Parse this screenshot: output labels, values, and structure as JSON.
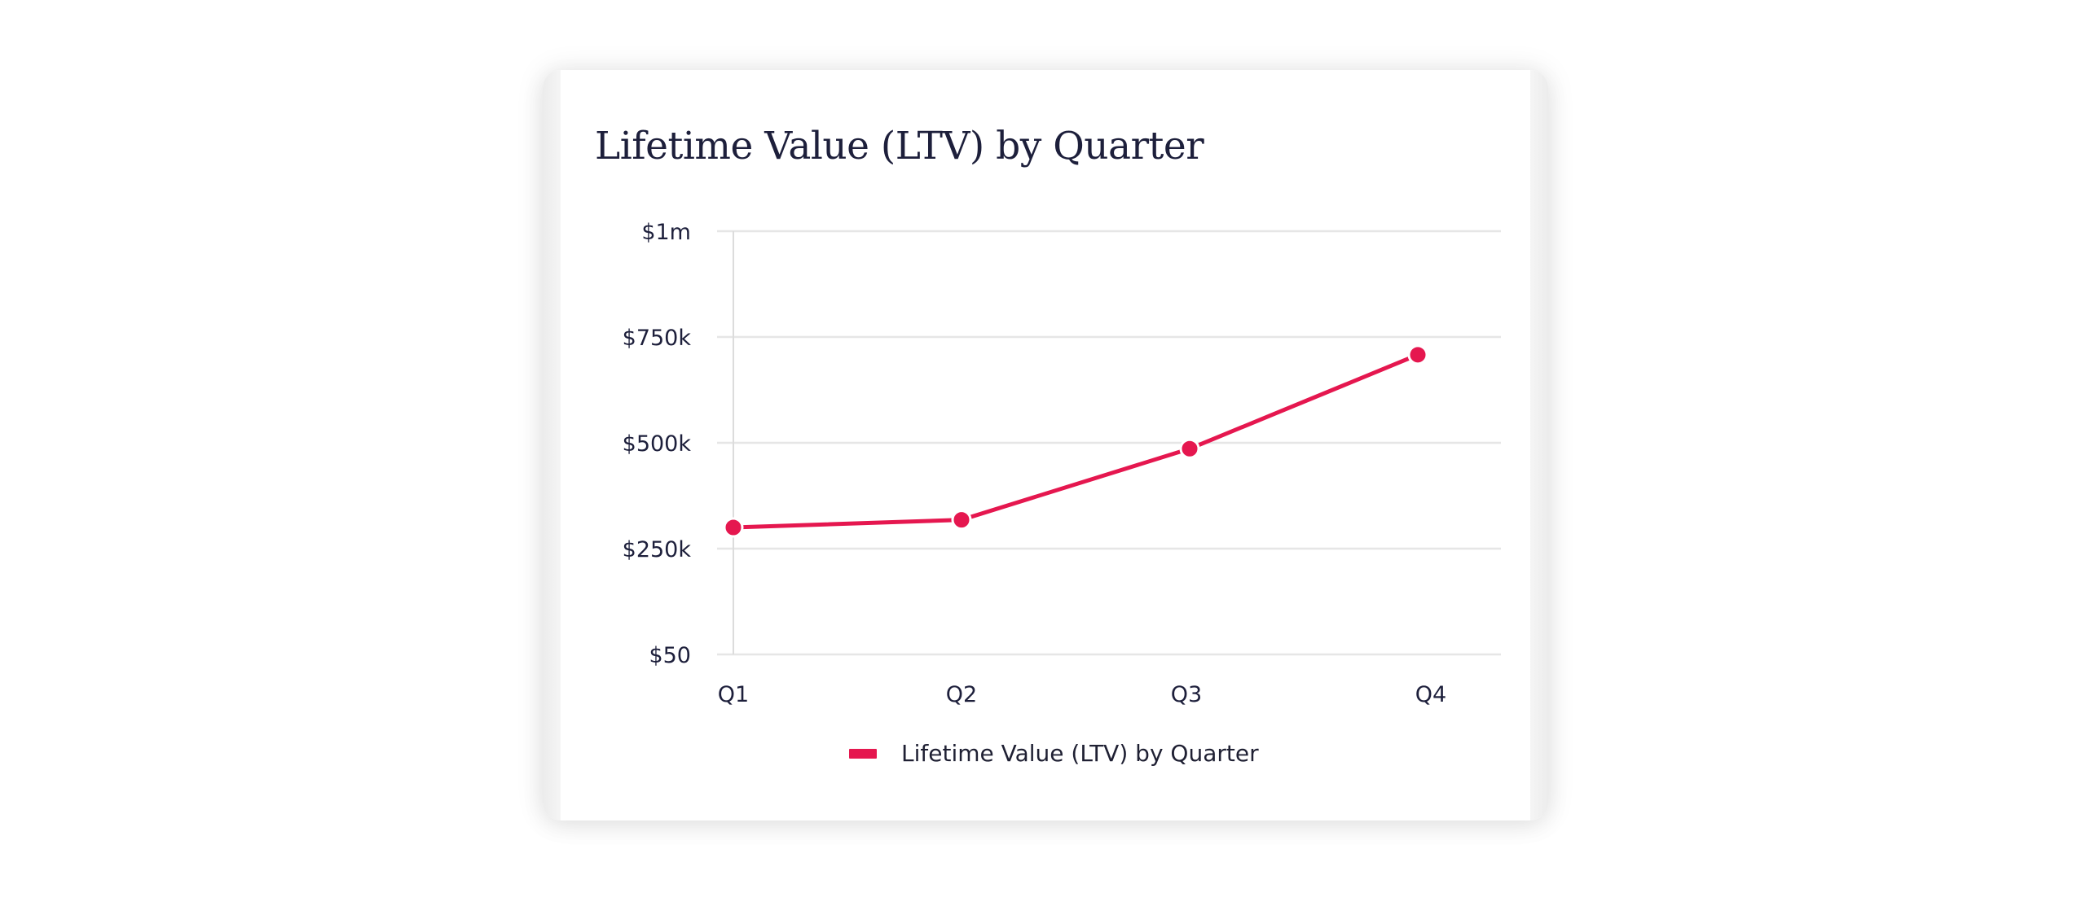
{
  "chart_data": {
    "type": "line",
    "title": "Lifetime Value (LTV) by Quarter",
    "xlabel": "",
    "ylabel": "",
    "categories": [
      "Q1",
      "Q2",
      "Q3",
      "Q4"
    ],
    "series": [
      {
        "name": "Lifetime Value (LTV) by Quarter",
        "values": [
          300000,
          318000,
          486000,
          708000
        ]
      }
    ],
    "y_ticks": [
      {
        "value": 50,
        "label": "$50"
      },
      {
        "value": 250000,
        "label": "$250k"
      },
      {
        "value": 500000,
        "label": "$500k"
      },
      {
        "value": 750000,
        "label": "$750k"
      },
      {
        "value": 1000000,
        "label": "$1m"
      }
    ],
    "ylim": [
      0,
      1000000
    ],
    "grid": true,
    "legend_position": "bottom-center",
    "colors": {
      "series": "#e5174f",
      "grid": "#e6e6e6",
      "text": "#1d1f3b"
    }
  }
}
